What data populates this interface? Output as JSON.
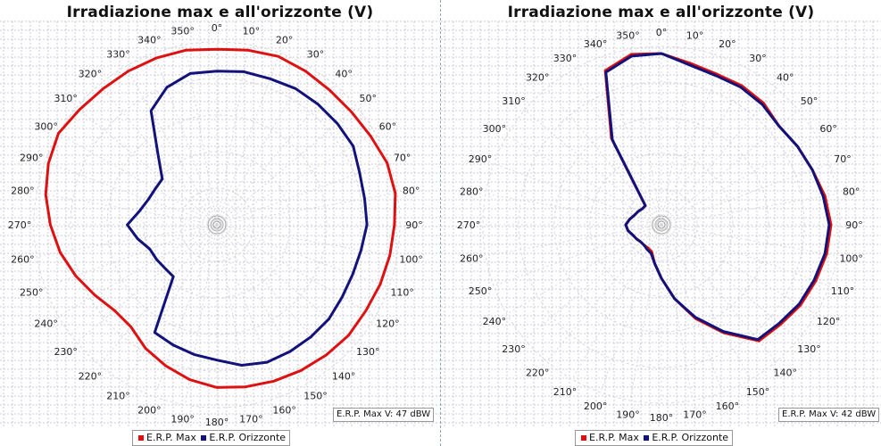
{
  "colors": {
    "max": "#dd1111",
    "orizzonte": "#12127a",
    "grid": "#c6ccd8",
    "ring": "#d8d8d8"
  },
  "chart_data": [
    {
      "type": "polar-line",
      "title": "Irradiazione max e all'orizzonte (V)",
      "angle_unit": "degrees",
      "angle_labels": [
        "0°",
        "10°",
        "20°",
        "30°",
        "40°",
        "50°",
        "60°",
        "70°",
        "80°",
        "90°",
        "100°",
        "110°",
        "120°",
        "130°",
        "140°",
        "150°",
        "160°",
        "170°",
        "180°",
        "190°",
        "200°",
        "210°",
        "220°",
        "230°",
        "240°",
        "250°",
        "260°",
        "270°",
        "280°",
        "290°",
        "300°",
        "310°",
        "320°",
        "330°",
        "340°",
        "350°"
      ],
      "radius_range": [
        0,
        1
      ],
      "legend": [
        "E.R.P. Max",
        "E.R.P. Orizzonte"
      ],
      "erp_note": "E.R.P. Max V: 47 dBW",
      "series": [
        {
          "name": "E.R.P. Max",
          "color": "#dd1111",
          "angles": [
            0,
            10,
            20,
            30,
            40,
            50,
            60,
            70,
            80,
            90,
            100,
            110,
            120,
            130,
            140,
            150,
            160,
            170,
            180,
            190,
            200,
            210,
            220,
            230,
            240,
            250,
            260,
            270,
            280,
            290,
            300,
            310,
            320,
            330,
            340,
            350
          ],
          "values": [
            0.96,
            0.97,
            0.98,
            0.97,
            0.96,
            0.96,
            0.97,
            0.99,
            0.99,
            0.97,
            0.96,
            0.95,
            0.94,
            0.94,
            0.93,
            0.92,
            0.91,
            0.9,
            0.89,
            0.86,
            0.82,
            0.78,
            0.73,
            0.73,
            0.77,
            0.82,
            0.87,
            0.91,
            0.95,
            0.98,
            1.0,
            0.98,
            0.97,
            0.97,
            0.97,
            0.97
          ]
        },
        {
          "name": "E.R.P. Orizzonte",
          "color": "#12127a",
          "angles": [
            0,
            10,
            20,
            30,
            40,
            50,
            60,
            70,
            80,
            90,
            100,
            110,
            120,
            130,
            140,
            150,
            160,
            170,
            180,
            190,
            200,
            210,
            220,
            230,
            240,
            250,
            260,
            270,
            280,
            290,
            300,
            310,
            320,
            330,
            340,
            350
          ],
          "values": [
            0.84,
            0.85,
            0.85,
            0.86,
            0.86,
            0.86,
            0.86,
            0.83,
            0.82,
            0.82,
            0.8,
            0.79,
            0.79,
            0.8,
            0.8,
            0.8,
            0.8,
            0.78,
            0.74,
            0.72,
            0.7,
            0.68,
            0.37,
            0.37,
            0.38,
            0.39,
            0.44,
            0.49,
            0.43,
            0.4,
            0.39,
            0.39,
            0.5,
            0.72,
            0.8,
            0.84
          ]
        }
      ]
    },
    {
      "type": "polar-line",
      "title": "Irradiazione max e all'orizzonte (V)",
      "angle_unit": "degrees",
      "angle_labels": [
        "0°",
        "10°",
        "20°",
        "30°",
        "40°",
        "50°",
        "60°",
        "70°",
        "80°",
        "90°",
        "100°",
        "110°",
        "120°",
        "130°",
        "140°",
        "150°",
        "160°",
        "170°",
        "180°",
        "190°",
        "200°",
        "210°",
        "220°",
        "230°",
        "240°",
        "250°",
        "260°",
        "270°",
        "280°",
        "290°",
        "300°",
        "310°",
        "320°",
        "330°",
        "340°",
        "350°"
      ],
      "radius_range": [
        0,
        1
      ],
      "legend": [
        "E.R.P. Max",
        "E.R.P. Orizzonte"
      ],
      "erp_note": "E.R.P. Max V: 42 dBW",
      "series": [
        {
          "name": "E.R.P. Max",
          "color": "#dd1111",
          "angles": [
            0,
            10,
            20,
            30,
            40,
            50,
            60,
            70,
            80,
            90,
            100,
            110,
            120,
            130,
            140,
            150,
            160,
            170,
            180,
            190,
            200,
            210,
            220,
            230,
            240,
            250,
            260,
            270,
            280,
            290,
            300,
            310,
            320,
            330,
            340,
            350
          ],
          "values": [
            0.96,
            0.92,
            0.9,
            0.9,
            0.89,
            0.86,
            0.88,
            0.9,
            0.93,
            0.95,
            0.94,
            0.92,
            0.9,
            0.87,
            0.85,
            0.7,
            0.56,
            0.42,
            0.3,
            0.22,
            0.16,
            0.15,
            0.15,
            0.15,
            0.16,
            0.17,
            0.19,
            0.2,
            0.18,
            0.16,
            0.15,
            0.14,
            0.14,
            0.56,
            0.92,
            0.97
          ]
        },
        {
          "name": "E.R.P. Orizzonte",
          "color": "#12127a",
          "angles": [
            0,
            10,
            20,
            30,
            40,
            50,
            60,
            70,
            80,
            90,
            100,
            110,
            120,
            130,
            140,
            150,
            160,
            170,
            180,
            190,
            200,
            210,
            220,
            230,
            240,
            250,
            260,
            270,
            280,
            290,
            300,
            310,
            320,
            330,
            340,
            350
          ],
          "values": [
            0.96,
            0.91,
            0.89,
            0.89,
            0.88,
            0.86,
            0.88,
            0.9,
            0.92,
            0.94,
            0.93,
            0.91,
            0.89,
            0.86,
            0.84,
            0.69,
            0.55,
            0.42,
            0.3,
            0.22,
            0.17,
            0.16,
            0.15,
            0.15,
            0.16,
            0.17,
            0.19,
            0.2,
            0.18,
            0.16,
            0.15,
            0.14,
            0.14,
            0.55,
            0.91,
            0.96
          ]
        }
      ]
    }
  ]
}
